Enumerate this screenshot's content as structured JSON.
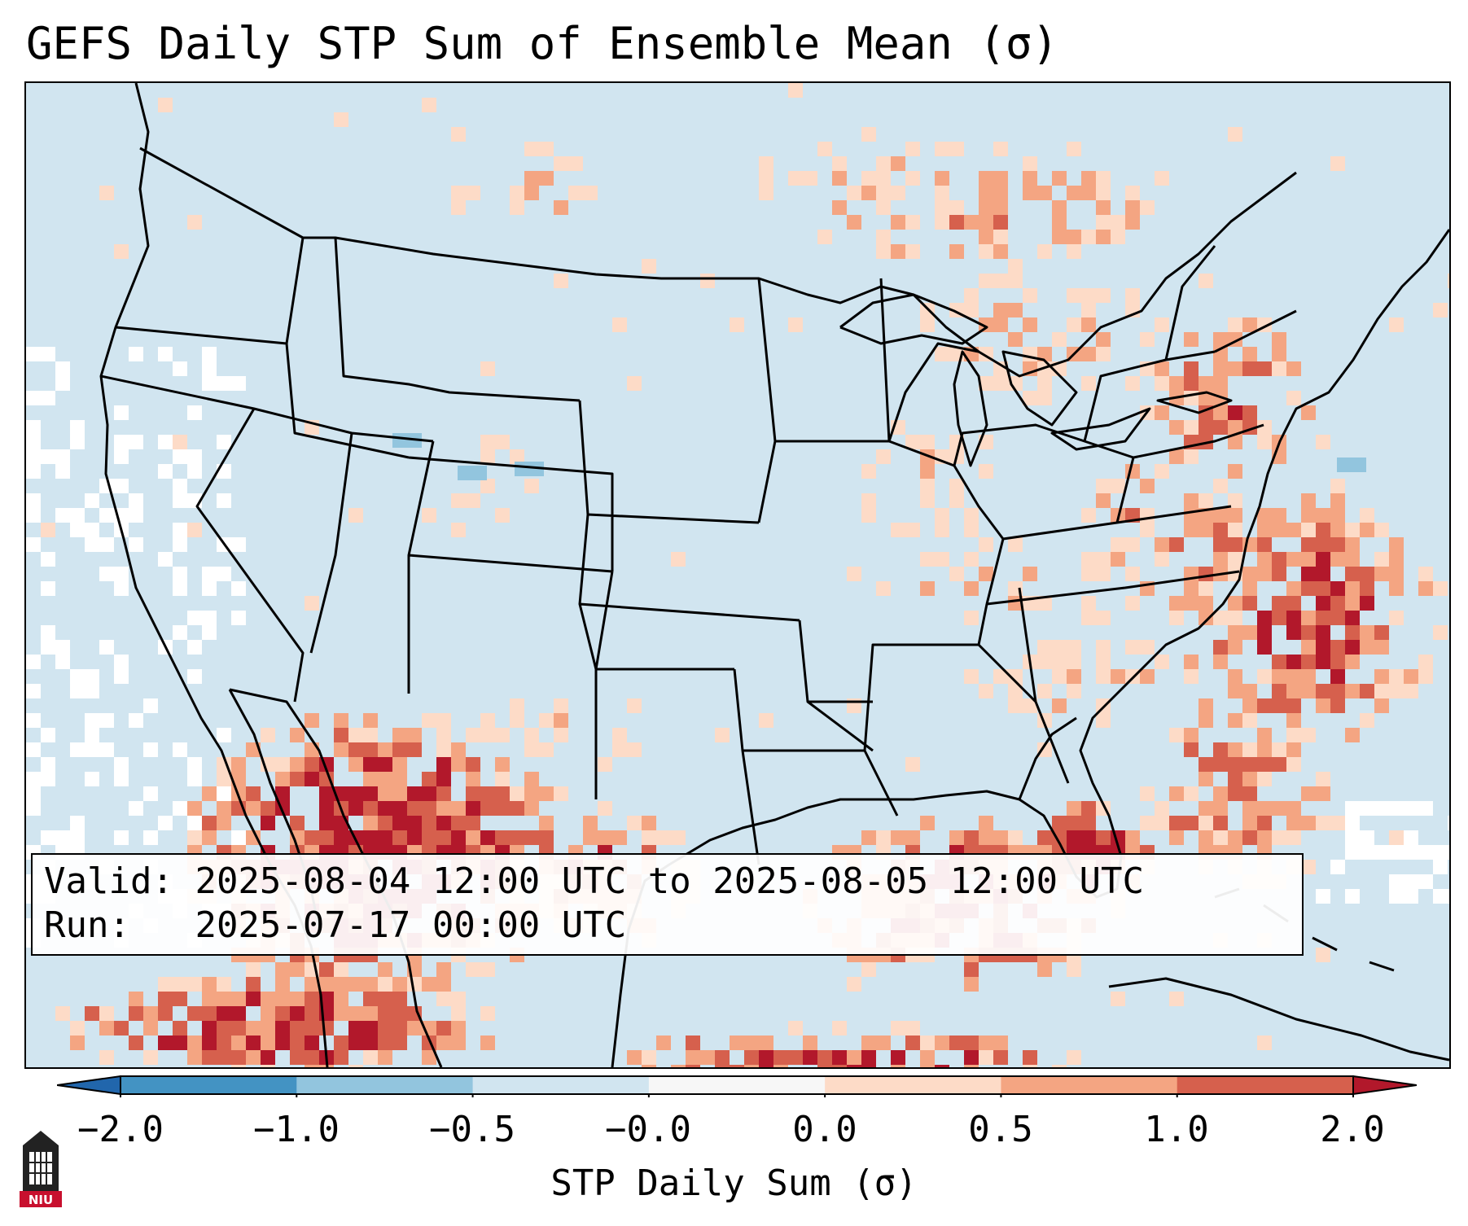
{
  "title": "GEFS Daily STP Sum of Ensemble Mean (σ)",
  "info": {
    "valid_label": "Valid:",
    "valid_value": "2025-08-04 12:00 UTC to 2025-08-05 12:00 UTC",
    "run_label": "Run:",
    "run_value": "2025-07-17 00:00 UTC"
  },
  "colorbar": {
    "label": "STP Daily Sum (σ)",
    "ticks": [
      "−2.0",
      "−1.0",
      "−0.5",
      "−0.0",
      "0.0",
      "0.5",
      "1.0",
      "2.0"
    ],
    "colors": [
      "#2166ac",
      "#4393c3",
      "#92c5de",
      "#d1e5f0",
      "#f7f7f7",
      "#fddbc7",
      "#f4a582",
      "#d6604d",
      "#b2182b"
    ]
  },
  "logo": {
    "text": "NIU",
    "icon": "university-seal-icon"
  }
}
